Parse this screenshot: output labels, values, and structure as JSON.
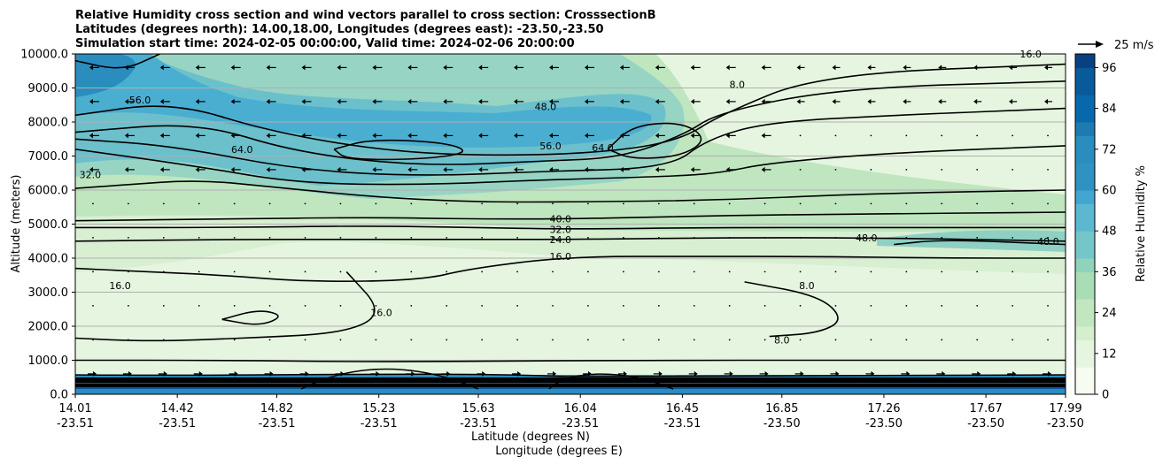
{
  "chart_data": {
    "type": "contour",
    "title_lines": [
      "Relative Humidity cross section and wind vectors parallel to cross section: CrosssectionB",
      "Latitudes (degrees north): 14.00,18.00, Longitudes (degrees east): -23.50,-23.50",
      "Simulation start time: 2024-02-05 00:00:00, Valid time: 2024-02-06 20:00:00"
    ],
    "xlabel_lat": "Latitude (degrees N)",
    "xlabel_lon": "Longitude (degrees E)",
    "ylabel": "Altitude (meters)",
    "x_ticks": [
      {
        "lat": "14.01",
        "lon": "-23.51"
      },
      {
        "lat": "14.42",
        "lon": "-23.51"
      },
      {
        "lat": "14.82",
        "lon": "-23.51"
      },
      {
        "lat": "15.23",
        "lon": "-23.51"
      },
      {
        "lat": "15.63",
        "lon": "-23.51"
      },
      {
        "lat": "16.04",
        "lon": "-23.51"
      },
      {
        "lat": "16.45",
        "lon": "-23.51"
      },
      {
        "lat": "16.85",
        "lon": "-23.50"
      },
      {
        "lat": "17.26",
        "lon": "-23.50"
      },
      {
        "lat": "17.67",
        "lon": "-23.50"
      },
      {
        "lat": "17.99",
        "lon": "-23.50"
      }
    ],
    "y_ticks": [
      "0.0",
      "1000.0",
      "2000.0",
      "3000.0",
      "4000.0",
      "5000.0",
      "6000.0",
      "7000.0",
      "8000.0",
      "9000.0",
      "10000.0"
    ],
    "ylim": [
      0,
      10000
    ],
    "grid": "horizontal",
    "colorbar": {
      "label": "Relative Humidity %",
      "ticks": [
        "0",
        "12",
        "24",
        "36",
        "48",
        "60",
        "72",
        "84",
        "96"
      ],
      "range": [
        0,
        100
      ],
      "levels": 25,
      "colormap": "GnBu"
    },
    "quiver_key": "25 m/s",
    "contour_labels": [
      {
        "text": "56.0",
        "lat": 14.27,
        "alt": 8650
      },
      {
        "text": "64.0",
        "lat": 14.68,
        "alt": 7200
      },
      {
        "text": "32.0",
        "lat": 14.07,
        "alt": 6450
      },
      {
        "text": "16.0",
        "lat": 14.19,
        "alt": 3200
      },
      {
        "text": "16.0",
        "lat": 15.24,
        "alt": 2400
      },
      {
        "text": "48.0",
        "lat": 15.9,
        "alt": 8450
      },
      {
        "text": "56.0",
        "lat": 15.92,
        "alt": 7300
      },
      {
        "text": "64.0",
        "lat": 16.13,
        "alt": 7250
      },
      {
        "text": "40.0",
        "lat": 15.96,
        "alt": 5150
      },
      {
        "text": "32.0",
        "lat": 15.96,
        "alt": 4850
      },
      {
        "text": "24.0",
        "lat": 15.96,
        "alt": 4550
      },
      {
        "text": "16.0",
        "lat": 15.96,
        "alt": 4050
      },
      {
        "text": "8.0",
        "lat": 16.67,
        "alt": 9100
      },
      {
        "text": "8.0",
        "lat": 16.95,
        "alt": 3200
      },
      {
        "text": "8.0",
        "lat": 16.85,
        "alt": 1600
      },
      {
        "text": "48.0",
        "lat": 17.19,
        "alt": 4600
      },
      {
        "text": "48.0",
        "lat": 17.92,
        "alt": 4500
      },
      {
        "text": "16.0",
        "lat": 17.85,
        "alt": 10000
      }
    ],
    "contour_lines": [
      {
        "level": "8.0",
        "pts": [
          [
            14.01,
            1000
          ],
          [
            14.6,
            1000
          ],
          [
            15.2,
            950
          ],
          [
            15.8,
            980
          ],
          [
            16.4,
            1000
          ],
          [
            17.0,
            1000
          ],
          [
            17.99,
            1000
          ]
        ]
      },
      {
        "level": "16.0",
        "pts": [
          [
            14.01,
            3700
          ],
          [
            14.3,
            3600
          ],
          [
            14.6,
            3500
          ],
          [
            14.95,
            3300
          ],
          [
            15.4,
            3350
          ],
          [
            15.6,
            3700
          ],
          [
            16.0,
            4050
          ],
          [
            16.5,
            4050
          ],
          [
            17.0,
            4050
          ],
          [
            17.5,
            4000
          ],
          [
            17.99,
            4000
          ]
        ]
      },
      {
        "level": "24.0",
        "pts": [
          [
            14.01,
            4500
          ],
          [
            14.6,
            4550
          ],
          [
            15.2,
            4550
          ],
          [
            15.6,
            4550
          ],
          [
            16.0,
            4550
          ],
          [
            16.6,
            4600
          ],
          [
            17.2,
            4600
          ],
          [
            17.99,
            4500
          ]
        ]
      },
      {
        "level": "32.0",
        "pts": [
          [
            14.01,
            4900
          ],
          [
            14.6,
            4900
          ],
          [
            15.2,
            4950
          ],
          [
            15.6,
            4900
          ],
          [
            16.0,
            4850
          ],
          [
            16.6,
            4900
          ],
          [
            17.2,
            4900
          ],
          [
            17.99,
            4900
          ]
        ]
      },
      {
        "level": "40.0",
        "pts": [
          [
            14.01,
            5100
          ],
          [
            14.6,
            5150
          ],
          [
            15.2,
            5200
          ],
          [
            15.6,
            5150
          ],
          [
            16.0,
            5150
          ],
          [
            16.6,
            5250
          ],
          [
            17.2,
            5300
          ],
          [
            17.99,
            5350
          ]
        ]
      },
      {
        "level": "32.0",
        "pts": [
          [
            14.01,
            6050
          ],
          [
            14.2,
            6150
          ],
          [
            14.5,
            6300
          ],
          [
            14.8,
            6100
          ],
          [
            15.2,
            5800
          ],
          [
            15.6,
            5650
          ],
          [
            16.0,
            5650
          ],
          [
            16.6,
            5700
          ],
          [
            17.2,
            5900
          ],
          [
            17.99,
            6000
          ]
        ]
      },
      {
        "level": "40.0",
        "pts": [
          [
            14.01,
            7200
          ],
          [
            14.5,
            6700
          ],
          [
            14.9,
            6200
          ],
          [
            15.4,
            6150
          ],
          [
            15.9,
            6300
          ],
          [
            16.4,
            6400
          ],
          [
            16.6,
            6500
          ],
          [
            16.8,
            6800
          ],
          [
            17.3,
            7100
          ],
          [
            17.99,
            7300
          ]
        ]
      },
      {
        "level": "48.0",
        "pts": [
          [
            14.01,
            7500
          ],
          [
            14.4,
            7300
          ],
          [
            14.9,
            6600
          ],
          [
            15.4,
            6400
          ],
          [
            15.9,
            6550
          ],
          [
            16.4,
            6650
          ],
          [
            16.55,
            7500
          ],
          [
            16.8,
            8000
          ],
          [
            17.3,
            8200
          ],
          [
            17.99,
            8400
          ]
        ]
      },
      {
        "level": "56.0",
        "pts": [
          [
            14.01,
            7700
          ],
          [
            14.5,
            8000
          ],
          [
            14.9,
            7100
          ],
          [
            15.4,
            6700
          ],
          [
            15.9,
            6850
          ],
          [
            16.2,
            6950
          ],
          [
            16.45,
            7600
          ],
          [
            16.6,
            8300
          ],
          [
            17.1,
            9000
          ],
          [
            17.99,
            9200
          ]
        ]
      },
      {
        "level": "64.0",
        "pts": [
          [
            14.01,
            8200
          ],
          [
            14.4,
            8600
          ],
          [
            14.8,
            7700
          ],
          [
            15.3,
            7100
          ],
          [
            15.8,
            7000
          ],
          [
            16.2,
            7150
          ],
          [
            16.45,
            7500
          ],
          [
            16.6,
            8200
          ],
          [
            17.0,
            9400
          ],
          [
            17.99,
            9700
          ]
        ]
      },
      {
        "level": "64.0",
        "pts": [
          [
            15.05,
            7200
          ],
          [
            15.2,
            7500
          ],
          [
            15.5,
            7400
          ],
          [
            15.6,
            7100
          ],
          [
            15.4,
            6900
          ],
          [
            15.1,
            6900
          ],
          [
            15.05,
            7200
          ]
        ]
      },
      {
        "level": "56.0",
        "pts": [
          [
            16.15,
            7200
          ],
          [
            16.25,
            7900
          ],
          [
            16.45,
            8000
          ],
          [
            16.55,
            7500
          ],
          [
            16.45,
            7000
          ],
          [
            16.25,
            6900
          ],
          [
            16.15,
            7200
          ]
        ]
      },
      {
        "level": "16.0",
        "pts": [
          [
            14.6,
            2200
          ],
          [
            14.75,
            2500
          ],
          [
            14.85,
            2300
          ],
          [
            14.75,
            2000
          ],
          [
            14.6,
            2200
          ]
        ]
      },
      {
        "level": "8.0",
        "pts": [
          [
            16.7,
            3300
          ],
          [
            17.0,
            2900
          ],
          [
            17.1,
            2200
          ],
          [
            17.0,
            1800
          ],
          [
            16.8,
            1700
          ]
        ]
      },
      {
        "level": "48.0",
        "pts": [
          [
            17.3,
            4400
          ],
          [
            17.5,
            4550
          ],
          [
            17.99,
            4400
          ]
        ]
      },
      {
        "level": "16.0",
        "pts": [
          [
            15.1,
            3600
          ],
          [
            15.25,
            2400
          ],
          [
            15.1,
            1800
          ],
          [
            14.7,
            1650
          ],
          [
            14.3,
            1550
          ],
          [
            14.01,
            1650
          ]
        ]
      },
      {
        "level": "56.0",
        "pts": [
          [
            14.01,
            9800
          ],
          [
            14.2,
            9500
          ],
          [
            14.35,
            10000
          ]
        ]
      }
    ]
  }
}
